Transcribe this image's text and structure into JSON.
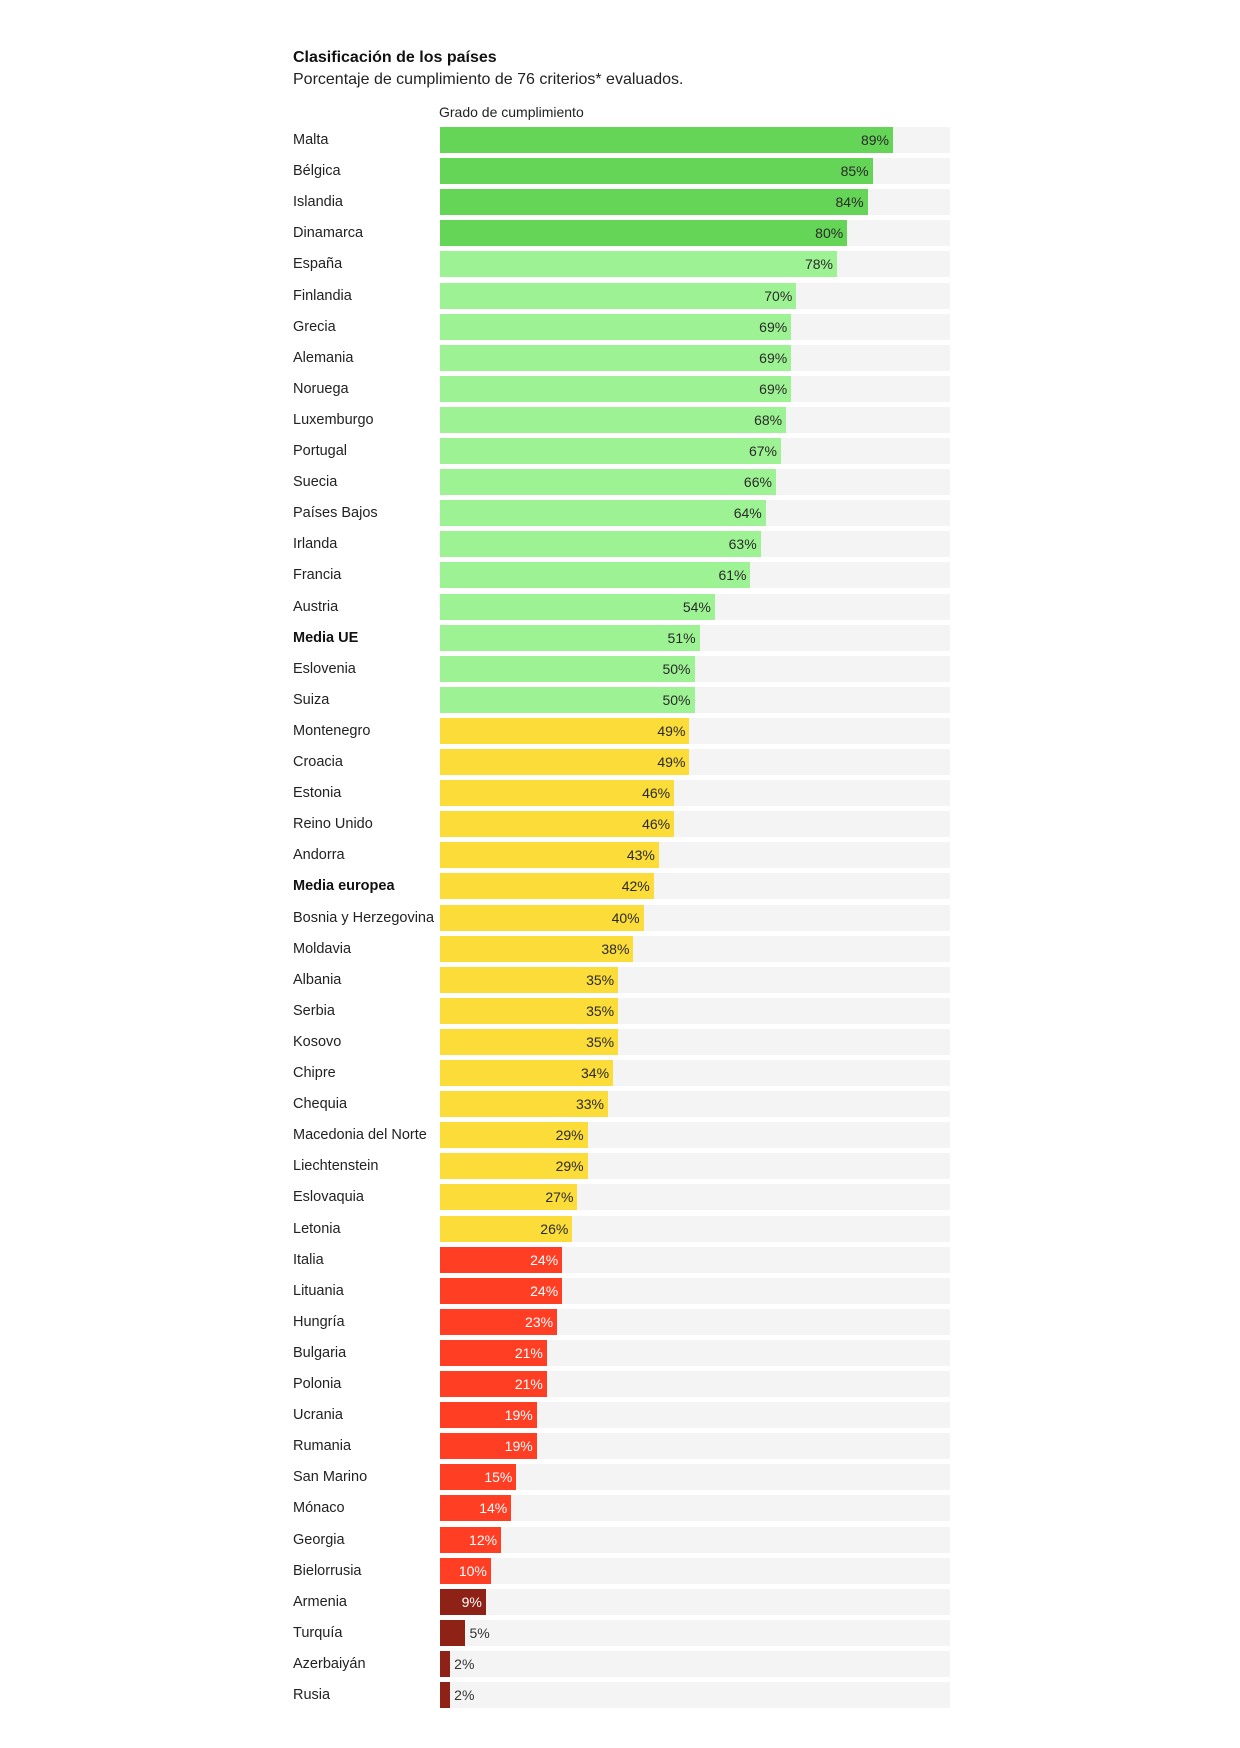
{
  "chart_data": {
    "type": "bar",
    "title": "Clasificación de los países",
    "subtitle": "Porcentaje de cumplimiento de 76 criterios* evaluados.",
    "xlabel": "Grado de cumplimiento",
    "ylabel": "",
    "xlim": [
      0,
      100
    ],
    "orientation": "horizontal",
    "value_suffix": "%",
    "colors": {
      "high": "#64d557",
      "medium_high": "#9df393",
      "medium": "#fbdc38",
      "low": "#ff3e24",
      "very_low": "#8f2216",
      "track": "#f4f4f4"
    },
    "categories": [
      "Malta",
      "Bélgica",
      "Islandia",
      "Dinamarca",
      "España",
      "Finlandia",
      "Grecia",
      "Alemania",
      "Noruega",
      "Luxemburgo",
      "Portugal",
      "Suecia",
      "Países Bajos",
      "Irlanda",
      "Francia",
      "Austria",
      "Media UE",
      "Eslovenia",
      "Suiza",
      "Montenegro",
      "Croacia",
      "Estonia",
      "Reino Unido",
      "Andorra",
      "Media europea",
      "Bosnia y Herzegovina",
      "Moldavia",
      "Albania",
      "Serbia",
      "Kosovo",
      "Chipre",
      "Chequia",
      "Macedonia del Norte",
      "Liechtenstein",
      "Eslovaquia",
      "Letonia",
      "Italia",
      "Lituania",
      "Hungría",
      "Bulgaria",
      "Polonia",
      "Ucrania",
      "Rumania",
      "San Marino",
      "Mónaco",
      "Georgia",
      "Bielorrusia",
      "Armenia",
      "Turquía",
      "Azerbaiyán",
      "Rusia"
    ],
    "values": [
      89,
      85,
      84,
      80,
      78,
      70,
      69,
      69,
      69,
      68,
      67,
      66,
      64,
      63,
      61,
      54,
      51,
      50,
      50,
      49,
      49,
      46,
      46,
      43,
      42,
      40,
      38,
      35,
      35,
      35,
      34,
      33,
      29,
      29,
      27,
      26,
      24,
      24,
      23,
      21,
      21,
      19,
      19,
      15,
      14,
      12,
      10,
      9,
      5,
      2,
      2
    ],
    "bold_categories": [
      "Media UE",
      "Media europea"
    ]
  }
}
